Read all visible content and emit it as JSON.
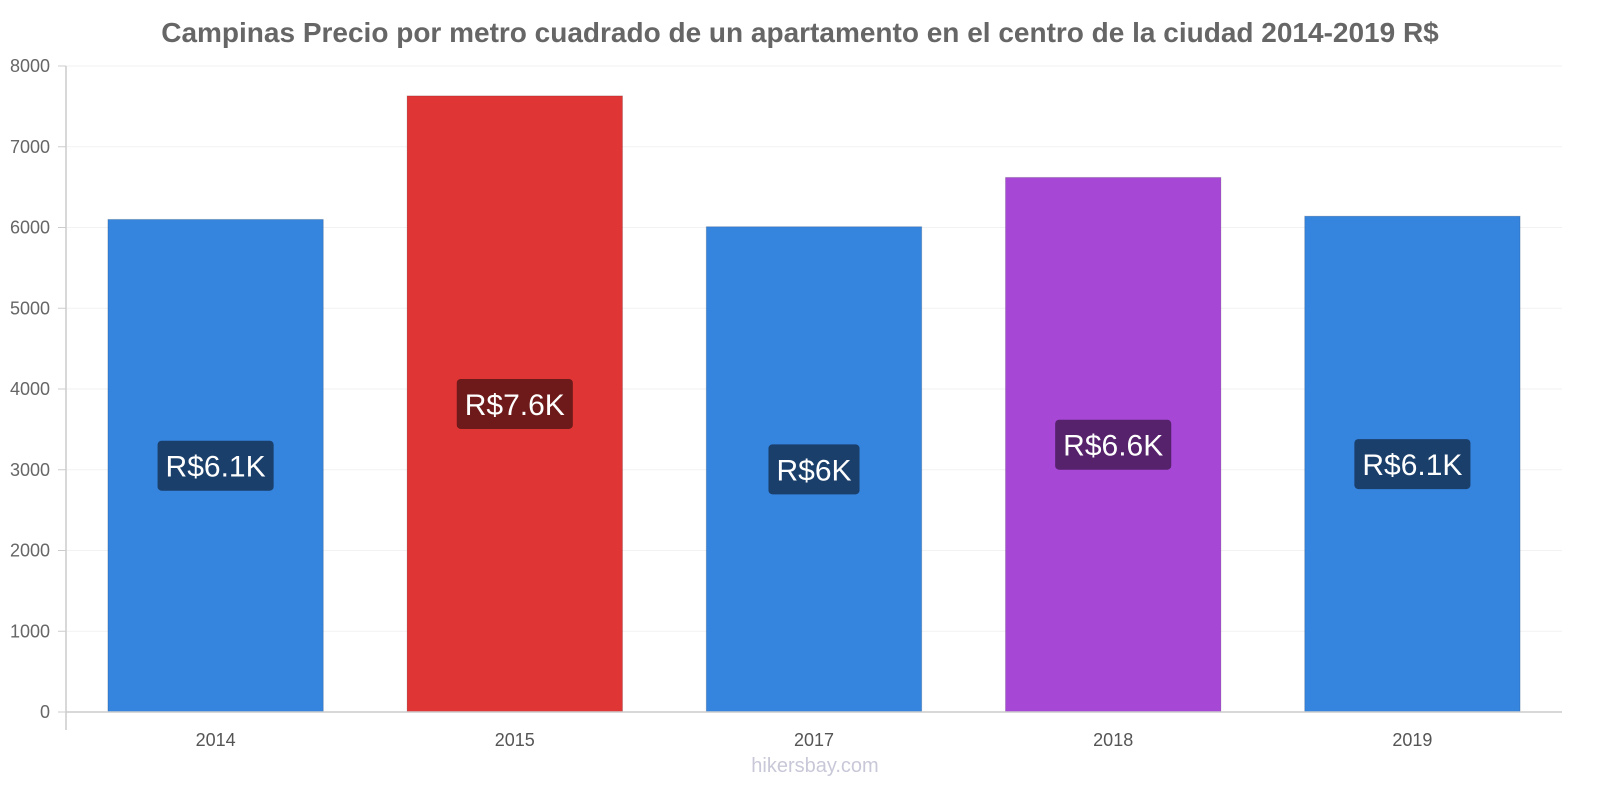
{
  "chart_data": {
    "type": "bar",
    "title": "Campinas Precio por metro cuadrado de un apartamento en el centro de la ciudad 2014-2019 R$",
    "categories": [
      "2014",
      "2015",
      "2017",
      "2018",
      "2019"
    ],
    "values": [
      6100,
      7630,
      6010,
      6620,
      6140
    ],
    "data_labels": [
      "R$6.1K",
      "R$7.6K",
      "R$6K",
      "R$6.6K",
      "R$6.1K"
    ],
    "bar_colors": [
      "#3584de",
      "#e03535",
      "#3584de",
      "#a647d6",
      "#3584de"
    ],
    "label_bg_colors": [
      "#1b3f6b",
      "#6e1a1a",
      "#1b3f6b",
      "#55226b",
      "#1b3f6b"
    ],
    "ylim": [
      0,
      8000
    ],
    "yticks": [
      0,
      1000,
      2000,
      3000,
      4000,
      5000,
      6000,
      7000,
      8000
    ],
    "xlabel": "",
    "ylabel": "",
    "grid": true,
    "legend": "none"
  },
  "watermark": "hikersbay.com"
}
